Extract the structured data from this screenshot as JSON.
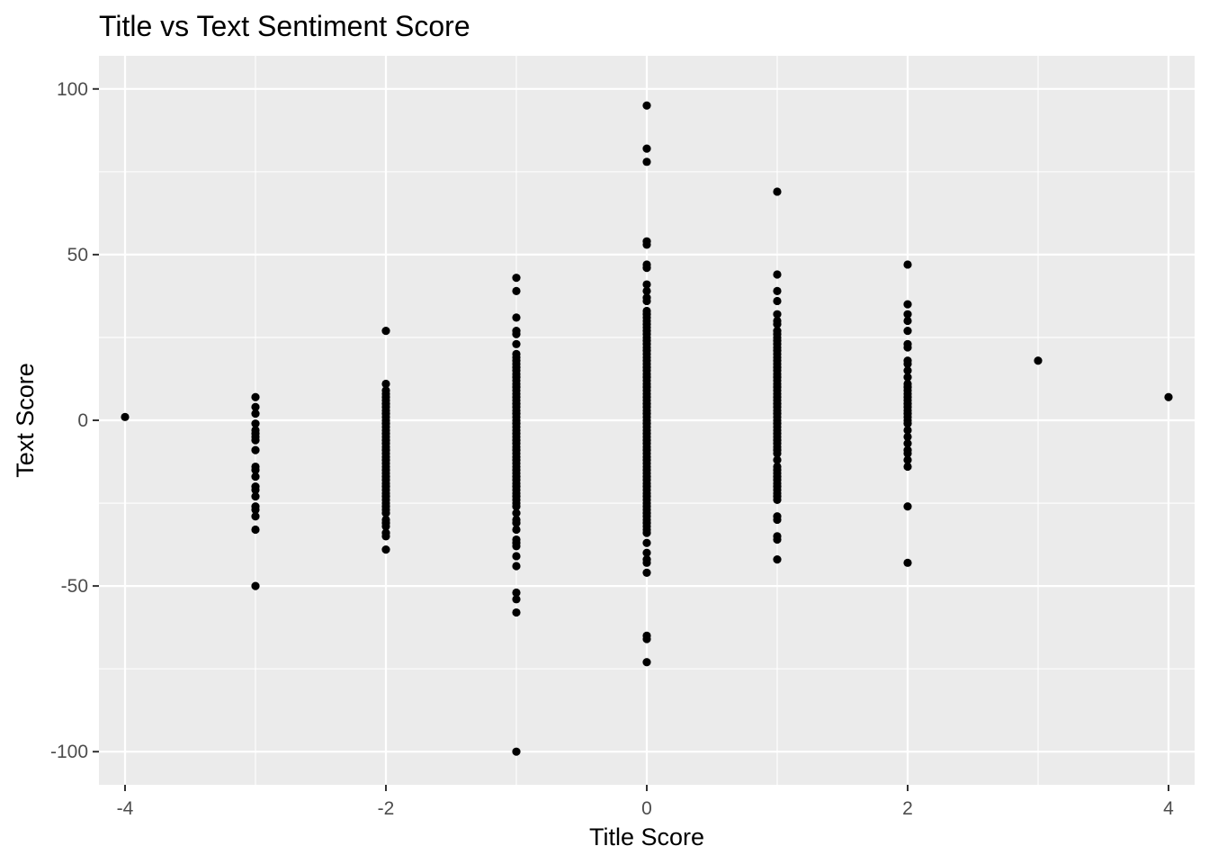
{
  "chart_data": {
    "type": "scatter",
    "title": "Title vs Text Sentiment Score",
    "xlabel": "Title Score",
    "ylabel": "Text Score",
    "xlim": [
      -4.2,
      4.2
    ],
    "ylim": [
      -110,
      110
    ],
    "x_ticks": [
      -4,
      -2,
      0,
      2,
      4
    ],
    "y_ticks": [
      -100,
      -50,
      0,
      50,
      100
    ],
    "x_tick_labels": [
      "-4",
      "-2",
      "0",
      "2",
      "4"
    ],
    "y_tick_labels": [
      "-100",
      "-50",
      "0",
      "50",
      "100"
    ],
    "grid": true,
    "legend": "none",
    "colors": {
      "panel": "#ebebeb",
      "grid": "#ffffff",
      "point": "#000000"
    },
    "points": [
      [
        -4,
        1
      ],
      [
        -3,
        7
      ],
      [
        -3,
        4
      ],
      [
        -3,
        2
      ],
      [
        -3,
        -1
      ],
      [
        -3,
        -3
      ],
      [
        -3,
        -4
      ],
      [
        -3,
        -5
      ],
      [
        -3,
        -6
      ],
      [
        -3,
        -9
      ],
      [
        -3,
        -14
      ],
      [
        -3,
        -15
      ],
      [
        -3,
        -17
      ],
      [
        -3,
        -20
      ],
      [
        -3,
        -21
      ],
      [
        -3,
        -23
      ],
      [
        -3,
        -26
      ],
      [
        -3,
        -27
      ],
      [
        -3,
        -29
      ],
      [
        -3,
        -33
      ],
      [
        -3,
        -50
      ],
      [
        -2,
        27
      ],
      [
        -2,
        11
      ],
      [
        -2,
        9
      ],
      [
        -2,
        8
      ],
      [
        -2,
        7
      ],
      [
        -2,
        6
      ],
      [
        -2,
        5
      ],
      [
        -2,
        4
      ],
      [
        -2,
        3
      ],
      [
        -2,
        2
      ],
      [
        -2,
        1
      ],
      [
        -2,
        0
      ],
      [
        -2,
        -1
      ],
      [
        -2,
        -2
      ],
      [
        -2,
        -3
      ],
      [
        -2,
        -4
      ],
      [
        -2,
        -5
      ],
      [
        -2,
        -6
      ],
      [
        -2,
        -7
      ],
      [
        -2,
        -8
      ],
      [
        -2,
        -9
      ],
      [
        -2,
        -10
      ],
      [
        -2,
        -11
      ],
      [
        -2,
        -12
      ],
      [
        -2,
        -13
      ],
      [
        -2,
        -14
      ],
      [
        -2,
        -15
      ],
      [
        -2,
        -16
      ],
      [
        -2,
        -17
      ],
      [
        -2,
        -18
      ],
      [
        -2,
        -19
      ],
      [
        -2,
        -20
      ],
      [
        -2,
        -21
      ],
      [
        -2,
        -22
      ],
      [
        -2,
        -23
      ],
      [
        -2,
        -24
      ],
      [
        -2,
        -25
      ],
      [
        -2,
        -26
      ],
      [
        -2,
        -27
      ],
      [
        -2,
        -28
      ],
      [
        -2,
        -30
      ],
      [
        -2,
        -31
      ],
      [
        -2,
        -32
      ],
      [
        -2,
        -34
      ],
      [
        -2,
        -35
      ],
      [
        -2,
        -39
      ],
      [
        -1,
        43
      ],
      [
        -1,
        39
      ],
      [
        -1,
        31
      ],
      [
        -1,
        27
      ],
      [
        -1,
        26
      ],
      [
        -1,
        23
      ],
      [
        -1,
        20
      ],
      [
        -1,
        19
      ],
      [
        -1,
        18
      ],
      [
        -1,
        17
      ],
      [
        -1,
        16
      ],
      [
        -1,
        15
      ],
      [
        -1,
        14
      ],
      [
        -1,
        13
      ],
      [
        -1,
        12
      ],
      [
        -1,
        11
      ],
      [
        -1,
        10
      ],
      [
        -1,
        9
      ],
      [
        -1,
        8
      ],
      [
        -1,
        7
      ],
      [
        -1,
        6
      ],
      [
        -1,
        5
      ],
      [
        -1,
        4
      ],
      [
        -1,
        3
      ],
      [
        -1,
        2
      ],
      [
        -1,
        1
      ],
      [
        -1,
        0
      ],
      [
        -1,
        -1
      ],
      [
        -1,
        -2
      ],
      [
        -1,
        -3
      ],
      [
        -1,
        -4
      ],
      [
        -1,
        -5
      ],
      [
        -1,
        -6
      ],
      [
        -1,
        -7
      ],
      [
        -1,
        -8
      ],
      [
        -1,
        -9
      ],
      [
        -1,
        -10
      ],
      [
        -1,
        -11
      ],
      [
        -1,
        -12
      ],
      [
        -1,
        -13
      ],
      [
        -1,
        -14
      ],
      [
        -1,
        -15
      ],
      [
        -1,
        -16
      ],
      [
        -1,
        -17
      ],
      [
        -1,
        -18
      ],
      [
        -1,
        -19
      ],
      [
        -1,
        -20
      ],
      [
        -1,
        -21
      ],
      [
        -1,
        -22
      ],
      [
        -1,
        -23
      ],
      [
        -1,
        -24
      ],
      [
        -1,
        -25
      ],
      [
        -1,
        -26
      ],
      [
        -1,
        -28
      ],
      [
        -1,
        -30
      ],
      [
        -1,
        -31
      ],
      [
        -1,
        -33
      ],
      [
        -1,
        -36
      ],
      [
        -1,
        -37
      ],
      [
        -1,
        -38
      ],
      [
        -1,
        -41
      ],
      [
        -1,
        -44
      ],
      [
        -1,
        -52
      ],
      [
        -1,
        -54
      ],
      [
        -1,
        -58
      ],
      [
        -1,
        -100
      ],
      [
        0,
        95
      ],
      [
        0,
        82
      ],
      [
        0,
        78
      ],
      [
        0,
        54
      ],
      [
        0,
        53
      ],
      [
        0,
        47
      ],
      [
        0,
        46
      ],
      [
        0,
        41
      ],
      [
        0,
        39
      ],
      [
        0,
        37
      ],
      [
        0,
        36
      ],
      [
        0,
        33
      ],
      [
        0,
        32
      ],
      [
        0,
        31
      ],
      [
        0,
        30
      ],
      [
        0,
        29
      ],
      [
        0,
        28
      ],
      [
        0,
        27
      ],
      [
        0,
        26
      ],
      [
        0,
        25
      ],
      [
        0,
        24
      ],
      [
        0,
        23
      ],
      [
        0,
        22
      ],
      [
        0,
        21
      ],
      [
        0,
        20
      ],
      [
        0,
        19
      ],
      [
        0,
        18
      ],
      [
        0,
        17
      ],
      [
        0,
        16
      ],
      [
        0,
        15
      ],
      [
        0,
        14
      ],
      [
        0,
        13
      ],
      [
        0,
        12
      ],
      [
        0,
        11
      ],
      [
        0,
        10
      ],
      [
        0,
        9
      ],
      [
        0,
        8
      ],
      [
        0,
        7
      ],
      [
        0,
        6
      ],
      [
        0,
        5
      ],
      [
        0,
        4
      ],
      [
        0,
        3
      ],
      [
        0,
        2
      ],
      [
        0,
        1
      ],
      [
        0,
        0
      ],
      [
        0,
        -1
      ],
      [
        0,
        -2
      ],
      [
        0,
        -3
      ],
      [
        0,
        -4
      ],
      [
        0,
        -5
      ],
      [
        0,
        -6
      ],
      [
        0,
        -7
      ],
      [
        0,
        -8
      ],
      [
        0,
        -9
      ],
      [
        0,
        -10
      ],
      [
        0,
        -11
      ],
      [
        0,
        -12
      ],
      [
        0,
        -13
      ],
      [
        0,
        -14
      ],
      [
        0,
        -15
      ],
      [
        0,
        -16
      ],
      [
        0,
        -17
      ],
      [
        0,
        -18
      ],
      [
        0,
        -19
      ],
      [
        0,
        -20
      ],
      [
        0,
        -21
      ],
      [
        0,
        -22
      ],
      [
        0,
        -23
      ],
      [
        0,
        -24
      ],
      [
        0,
        -25
      ],
      [
        0,
        -26
      ],
      [
        0,
        -27
      ],
      [
        0,
        -28
      ],
      [
        0,
        -29
      ],
      [
        0,
        -30
      ],
      [
        0,
        -31
      ],
      [
        0,
        -32
      ],
      [
        0,
        -33
      ],
      [
        0,
        -34
      ],
      [
        0,
        -37
      ],
      [
        0,
        -40
      ],
      [
        0,
        -42
      ],
      [
        0,
        -43
      ],
      [
        0,
        -46
      ],
      [
        0,
        -65
      ],
      [
        0,
        -66
      ],
      [
        0,
        -73
      ],
      [
        1,
        69
      ],
      [
        1,
        44
      ],
      [
        1,
        39
      ],
      [
        1,
        36
      ],
      [
        1,
        32
      ],
      [
        1,
        30
      ],
      [
        1,
        29
      ],
      [
        1,
        27
      ],
      [
        1,
        26
      ],
      [
        1,
        25
      ],
      [
        1,
        24
      ],
      [
        1,
        23
      ],
      [
        1,
        22
      ],
      [
        1,
        21
      ],
      [
        1,
        20
      ],
      [
        1,
        19
      ],
      [
        1,
        18
      ],
      [
        1,
        17
      ],
      [
        1,
        16
      ],
      [
        1,
        15
      ],
      [
        1,
        14
      ],
      [
        1,
        13
      ],
      [
        1,
        12
      ],
      [
        1,
        11
      ],
      [
        1,
        10
      ],
      [
        1,
        9
      ],
      [
        1,
        8
      ],
      [
        1,
        7
      ],
      [
        1,
        6
      ],
      [
        1,
        5
      ],
      [
        1,
        4
      ],
      [
        1,
        3
      ],
      [
        1,
        2
      ],
      [
        1,
        1
      ],
      [
        1,
        0
      ],
      [
        1,
        -1
      ],
      [
        1,
        -2
      ],
      [
        1,
        -3
      ],
      [
        1,
        -4
      ],
      [
        1,
        -5
      ],
      [
        1,
        -6
      ],
      [
        1,
        -7
      ],
      [
        1,
        -8
      ],
      [
        1,
        -9
      ],
      [
        1,
        -10
      ],
      [
        1,
        -12
      ],
      [
        1,
        -14
      ],
      [
        1,
        -15
      ],
      [
        1,
        -16
      ],
      [
        1,
        -17
      ],
      [
        1,
        -18
      ],
      [
        1,
        -19
      ],
      [
        1,
        -20
      ],
      [
        1,
        -21
      ],
      [
        1,
        -22
      ],
      [
        1,
        -23
      ],
      [
        1,
        -24
      ],
      [
        1,
        -29
      ],
      [
        1,
        -30
      ],
      [
        1,
        -35
      ],
      [
        1,
        -36
      ],
      [
        1,
        -42
      ],
      [
        2,
        47
      ],
      [
        2,
        35
      ],
      [
        2,
        32
      ],
      [
        2,
        30
      ],
      [
        2,
        27
      ],
      [
        2,
        23
      ],
      [
        2,
        22
      ],
      [
        2,
        18
      ],
      [
        2,
        17
      ],
      [
        2,
        15
      ],
      [
        2,
        13
      ],
      [
        2,
        11
      ],
      [
        2,
        10
      ],
      [
        2,
        9
      ],
      [
        2,
        8
      ],
      [
        2,
        7
      ],
      [
        2,
        6
      ],
      [
        2,
        5
      ],
      [
        2,
        4
      ],
      [
        2,
        3
      ],
      [
        2,
        2
      ],
      [
        2,
        1
      ],
      [
        2,
        0
      ],
      [
        2,
        -1
      ],
      [
        2,
        -3
      ],
      [
        2,
        -5
      ],
      [
        2,
        -7
      ],
      [
        2,
        -9
      ],
      [
        2,
        -10
      ],
      [
        2,
        -12
      ],
      [
        2,
        -14
      ],
      [
        2,
        -26
      ],
      [
        2,
        -43
      ],
      [
        3,
        18
      ],
      [
        4,
        7
      ]
    ]
  }
}
